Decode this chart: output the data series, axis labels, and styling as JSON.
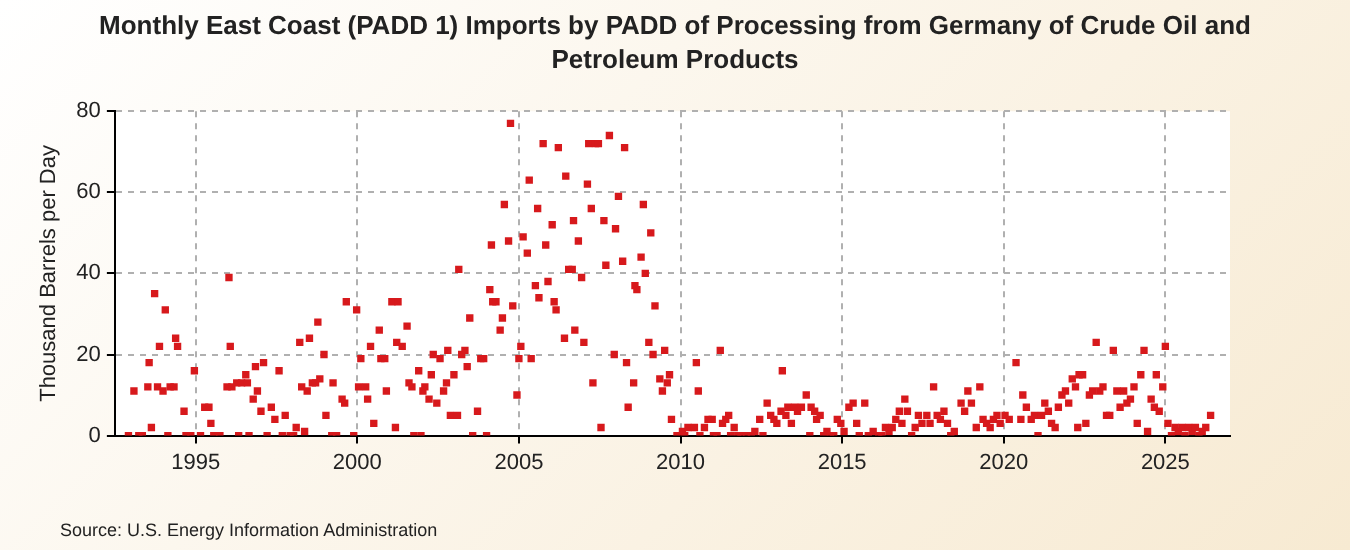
{
  "chart_data": {
    "type": "scatter",
    "title": "Monthly East Coast (PADD 1) Imports by PADD of Processing from Germany of Crude Oil and Petroleum Products",
    "ylabel": "Thousand Barrels per Day",
    "annotations": [
      "Source: U.S. Energy Information Administration"
    ],
    "xlim": [
      1992.5,
      2027
    ],
    "xticks": [
      1995,
      2000,
      2005,
      2010,
      2015,
      2020,
      2025
    ],
    "ylim": [
      0,
      80
    ],
    "yticks": [
      0,
      20,
      40,
      60,
      80
    ],
    "grid": true,
    "marker": "square",
    "series": [
      {
        "color": "#d7191c",
        "x": [
          1992.92,
          1993.09,
          1993.24,
          1993.35,
          1993.52,
          1993.56,
          1993.63,
          1993.73,
          1993.82,
          1993.88,
          1993.99,
          1994.06,
          1994.14,
          1994.21,
          1994.33,
          1994.38,
          1994.44,
          1994.64,
          1994.7,
          1994.85,
          1994.96,
          1995.15,
          1995.28,
          1995.41,
          1995.47,
          1995.56,
          1995.75,
          1995.97,
          1996.03,
          1996.07,
          1996.12,
          1996.27,
          1996.33,
          1996.42,
          1996.55,
          1996.6,
          1996.65,
          1996.78,
          1996.85,
          1996.91,
          1997.02,
          1997.1,
          1997.21,
          1997.34,
          1997.45,
          1997.58,
          1997.68,
          1997.77,
          1997.92,
          1998.03,
          1998.11,
          1998.22,
          1998.28,
          1998.37,
          1998.45,
          1998.52,
          1998.61,
          1998.71,
          1998.78,
          1998.84,
          1998.97,
          1999.03,
          1999.21,
          1999.25,
          1999.36,
          1999.53,
          1999.61,
          1999.66,
          1999.89,
          1999.98,
          2000.04,
          2000.11,
          2000.26,
          2000.32,
          2000.41,
          2000.51,
          2000.68,
          2000.73,
          2000.85,
          2000.9,
          2001.07,
          2001.18,
          2001.22,
          2001.26,
          2001.39,
          2001.54,
          2001.6,
          2001.69,
          2001.75,
          2001.9,
          2001.97,
          2002.03,
          2002.09,
          2002.22,
          2002.29,
          2002.35,
          2002.46,
          2002.56,
          2002.67,
          2002.76,
          2002.8,
          2002.88,
          2002.99,
          2003.1,
          2003.14,
          2003.23,
          2003.33,
          2003.4,
          2003.48,
          2003.57,
          2003.72,
          2003.82,
          2003.91,
          2004.0,
          2004.1,
          2004.15,
          2004.19,
          2004.29,
          2004.42,
          2004.49,
          2004.55,
          2004.68,
          2004.74,
          2004.81,
          2004.94,
          2005.0,
          2005.06,
          2005.13,
          2005.26,
          2005.32,
          2005.38,
          2005.51,
          2005.58,
          2005.62,
          2005.75,
          2005.83,
          2005.9,
          2006.03,
          2006.09,
          2006.15,
          2006.22,
          2006.41,
          2006.45,
          2006.54,
          2006.65,
          2006.69,
          2006.73,
          2006.84,
          2006.94,
          2007.01,
          2007.12,
          2007.16,
          2007.24,
          2007.29,
          2007.37,
          2007.46,
          2007.54,
          2007.63,
          2007.69,
          2007.8,
          2007.95,
          2007.99,
          2008.08,
          2008.21,
          2008.27,
          2008.33,
          2008.38,
          2008.55,
          2008.59,
          2008.65,
          2008.78,
          2008.85,
          2008.91,
          2009.02,
          2009.08,
          2009.15,
          2009.21,
          2009.36,
          2009.44,
          2009.51,
          2009.59,
          2009.66,
          2009.72,
          2009.89,
          2010.06,
          2010.13,
          2010.23,
          2010.43,
          2010.49,
          2010.55,
          2010.6,
          2010.74,
          2010.85,
          2010.98,
          2011.02,
          2011.13,
          2011.23,
          2011.3,
          2011.4,
          2011.49,
          2011.55,
          2011.66,
          2011.77,
          2011.87,
          2012.04,
          2012.19,
          2012.3,
          2012.45,
          2012.55,
          2012.68,
          2012.79,
          2012.89,
          2012.98,
          2013.11,
          2013.15,
          2013.26,
          2013.32,
          2013.43,
          2013.53,
          2013.62,
          2013.74,
          2013.89,
          2014.0,
          2014.04,
          2014.15,
          2014.21,
          2014.32,
          2014.43,
          2014.53,
          2014.64,
          2014.74,
          2014.85,
          2014.96,
          2015.06,
          2015.21,
          2015.34,
          2015.45,
          2015.53,
          2015.7,
          2015.81,
          2015.96,
          2016.13,
          2016.23,
          2016.34,
          2016.45,
          2016.55,
          2016.66,
          2016.77,
          2016.85,
          2016.94,
          2017.02,
          2017.15,
          2017.26,
          2017.36,
          2017.47,
          2017.62,
          2017.72,
          2017.83,
          2017.94,
          2018.04,
          2018.15,
          2018.26,
          2018.36,
          2018.47,
          2018.68,
          2018.79,
          2018.89,
          2019.0,
          2019.15,
          2019.26,
          2019.36,
          2019.47,
          2019.58,
          2019.68,
          2019.79,
          2019.89,
          2020.04,
          2020.17,
          2020.38,
          2020.53,
          2020.59,
          2020.7,
          2020.85,
          2020.95,
          2021.06,
          2021.17,
          2021.27,
          2021.38,
          2021.48,
          2021.59,
          2021.69,
          2021.8,
          2021.91,
          2022.01,
          2022.12,
          2022.22,
          2022.29,
          2022.33,
          2022.44,
          2022.54,
          2022.65,
          2022.75,
          2022.86,
          2022.97,
          2023.07,
          2023.18,
          2023.28,
          2023.39,
          2023.5,
          2023.6,
          2023.71,
          2023.81,
          2023.92,
          2024.03,
          2024.13,
          2024.24,
          2024.34,
          2024.45,
          2024.56,
          2024.66,
          2024.72,
          2024.81,
          2024.92,
          2025.0,
          2025.08,
          2025.19,
          2025.3,
          2025.4,
          2025.51,
          2025.61,
          2025.72,
          2025.83,
          2025.93,
          2026.04,
          2026.14,
          2026.25,
          2026.4
        ],
        "values": [
          0,
          11,
          0,
          0,
          12,
          18,
          2,
          35,
          12,
          22,
          11,
          31,
          0,
          12,
          12,
          24,
          22,
          6,
          0,
          0,
          16,
          0,
          7,
          7,
          3,
          0,
          0,
          12,
          39,
          22,
          12,
          13,
          0,
          13,
          15,
          13,
          0,
          9,
          17,
          11,
          6,
          18,
          0,
          7,
          4,
          16,
          0,
          5,
          0,
          0,
          2,
          23,
          12,
          1,
          11,
          24,
          13,
          13,
          28,
          14,
          20,
          5,
          0,
          13,
          0,
          9,
          8,
          33,
          0,
          31,
          12,
          19,
          12,
          9,
          22,
          3,
          26,
          19,
          19,
          11,
          33,
          2,
          23,
          33,
          22,
          27,
          13,
          12,
          0,
          16,
          0,
          11,
          12,
          9,
          15,
          20,
          8,
          19,
          11,
          13,
          21,
          5,
          15,
          5,
          41,
          20,
          21,
          17,
          29,
          0,
          6,
          19,
          19,
          0,
          36,
          47,
          33,
          33,
          26,
          29,
          57,
          48,
          77,
          32,
          10,
          19,
          22,
          49,
          45,
          63,
          19,
          37,
          56,
          34,
          72,
          47,
          38,
          52,
          33,
          31,
          71,
          24,
          64,
          41,
          41,
          53,
          26,
          48,
          39,
          23,
          62,
          72,
          56,
          13,
          72,
          72,
          2,
          53,
          42,
          74,
          20,
          51,
          59,
          43,
          71,
          18,
          7,
          13,
          37,
          36,
          44,
          57,
          40,
          23,
          50,
          20,
          32,
          14,
          11,
          21,
          13,
          15,
          4,
          0,
          1,
          0,
          2,
          2,
          18,
          11,
          0,
          2,
          4,
          4,
          0,
          0,
          21,
          3,
          4,
          5,
          0,
          2,
          0,
          0,
          0,
          0,
          1,
          4,
          0,
          8,
          5,
          4,
          3,
          6,
          16,
          5,
          7,
          3,
          7,
          6,
          7,
          10,
          0,
          7,
          6,
          4,
          5,
          0,
          1,
          0,
          0,
          4,
          3,
          1,
          7,
          8,
          3,
          0,
          8,
          0,
          1,
          0,
          0,
          2,
          1,
          2,
          4,
          6,
          3,
          9,
          6,
          0,
          2,
          5,
          3,
          5,
          3,
          12,
          5,
          4,
          6,
          3,
          0,
          1,
          8,
          6,
          11,
          8,
          2,
          12,
          4,
          3,
          2,
          4,
          5,
          3,
          5,
          4,
          18,
          4,
          10,
          7,
          4,
          5,
          0,
          5,
          8,
          6,
          3,
          2,
          7,
          10,
          11,
          8,
          14,
          12,
          2,
          15,
          15,
          3,
          10,
          11,
          23,
          11,
          12,
          5,
          5,
          21,
          11,
          7,
          11,
          8,
          9,
          12,
          3,
          15,
          21,
          1,
          9,
          7,
          15,
          6,
          12,
          22,
          3,
          0,
          2,
          1,
          2,
          0,
          2,
          1,
          2,
          0,
          1,
          2,
          5
        ]
      }
    ]
  }
}
